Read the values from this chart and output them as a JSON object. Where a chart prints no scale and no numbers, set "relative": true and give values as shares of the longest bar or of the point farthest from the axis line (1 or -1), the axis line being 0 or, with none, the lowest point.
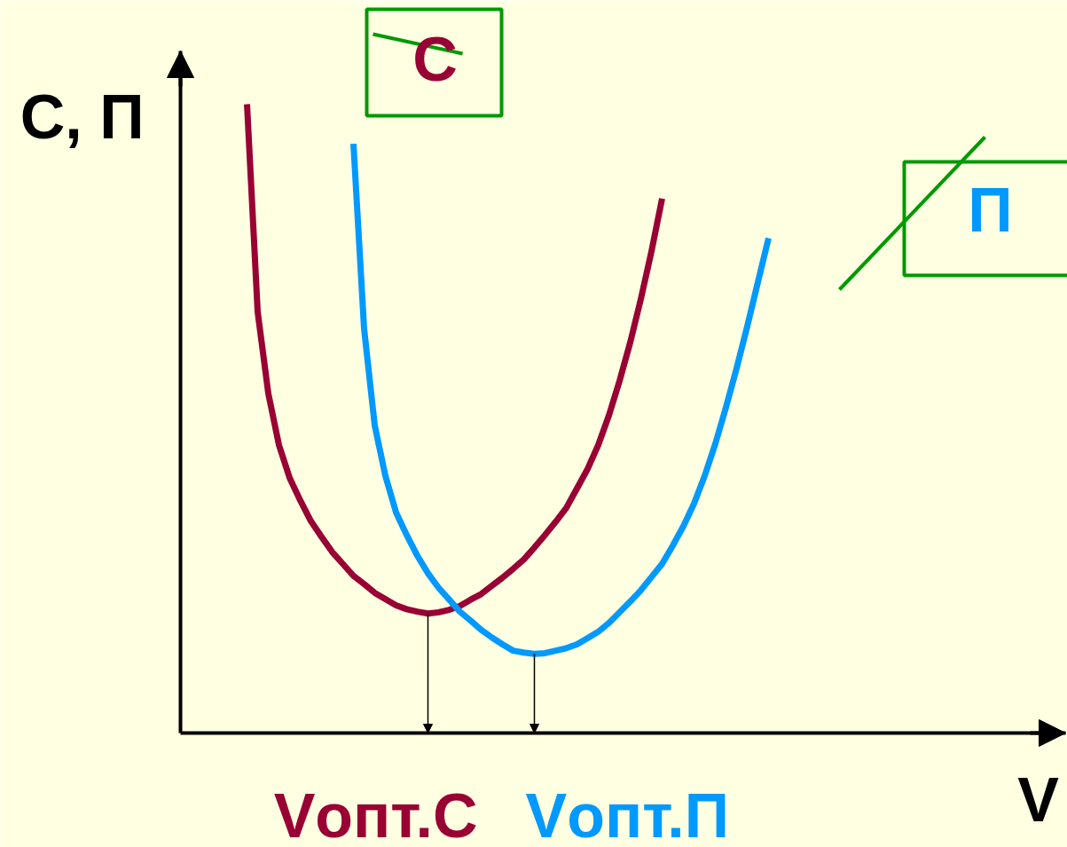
{
  "chart_data": {
    "type": "line",
    "relative": true,
    "xlabel": "V",
    "ylabel": "С, П",
    "line_style": "solid",
    "categories": [
      null,
      null,
      null,
      null,
      null,
      null,
      null,
      null,
      null,
      null,
      null,
      null,
      null,
      null,
      null,
      null,
      null,
      null,
      null,
      null,
      null,
      null,
      null,
      null,
      null,
      null,
      null,
      null,
      null,
      null,
      null,
      null,
      null,
      null,
      null,
      null,
      null,
      null,
      null,
      null,
      null,
      null,
      null,
      null,
      null,
      null,
      null,
      null,
      null,
      null
    ],
    "series": [
      {
        "name": "С",
        "color": "#990033",
        "values": [
          1.0,
          0.67,
          0.54,
          0.458,
          0.406,
          0.37,
          0.337,
          0.312,
          0.288,
          0.269,
          0.25,
          0.237,
          0.223,
          0.213,
          0.203,
          0.197,
          0.193,
          0.19,
          0.192,
          0.196,
          0.202,
          0.212,
          0.221,
          0.234,
          0.247,
          0.261,
          0.276,
          0.295,
          0.315,
          0.336,
          0.358,
          0.389,
          0.42,
          0.458,
          0.505,
          0.56,
          0.621,
          0.69,
          0.766,
          0.85,
          null,
          null,
          null,
          null,
          null,
          null,
          null,
          null,
          null,
          null
        ]
      },
      {
        "name": "П",
        "color": "#0099ff",
        "values": [
          null,
          null,
          null,
          null,
          null,
          null,
          null,
          null,
          null,
          null,
          0.937,
          0.643,
          0.489,
          0.409,
          0.351,
          0.315,
          0.282,
          0.254,
          0.231,
          0.212,
          0.193,
          0.179,
          0.164,
          0.152,
          0.141,
          0.131,
          0.128,
          0.126,
          0.127,
          0.131,
          0.135,
          0.141,
          0.151,
          0.161,
          0.175,
          0.192,
          0.209,
          0.227,
          0.248,
          0.269,
          0.298,
          0.329,
          0.365,
          0.409,
          0.46,
          0.518,
          0.58,
          0.647,
          0.717,
          0.787
        ]
      }
    ],
    "annotations": [
      "Vопт.С",
      "Vопт.П"
    ]
  }
}
